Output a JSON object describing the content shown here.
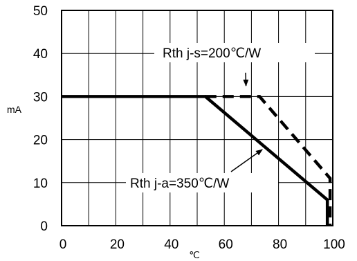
{
  "chart_data": {
    "type": "line",
    "xlabel": "℃",
    "ylabel": "mA",
    "xlim": [
      0,
      100
    ],
    "ylim": [
      0,
      50
    ],
    "x_ticks": [
      "0",
      "20",
      "40",
      "60",
      "80",
      "100"
    ],
    "y_ticks": [
      "0",
      "10",
      "20",
      "30",
      "40",
      "50"
    ],
    "grid": true,
    "series": [
      {
        "name": "Rth j-a=350℃/W",
        "style": "solid",
        "points": [
          [
            0,
            30
          ],
          [
            53,
            30
          ],
          [
            98,
            6
          ],
          [
            98,
            0
          ]
        ]
      },
      {
        "name": "Rth j-s=200℃/W",
        "style": "dashed",
        "points": [
          [
            53,
            30
          ],
          [
            73,
            30
          ],
          [
            99,
            11
          ],
          [
            99,
            0
          ]
        ]
      }
    ],
    "annotations": [
      {
        "text": "Rth j-s=200℃/W",
        "target_series": 1,
        "point": [
          68,
          32
        ]
      },
      {
        "text": "Rth j-a=350℃/W",
        "target_series": 0,
        "point": [
          74,
          18
        ]
      }
    ]
  }
}
